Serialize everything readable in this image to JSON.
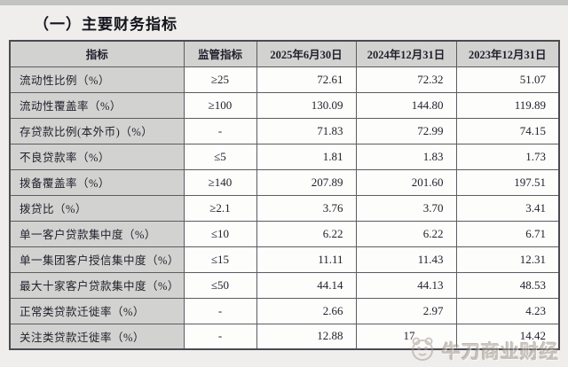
{
  "page": {
    "title": "（一）主要财务指标"
  },
  "table": {
    "columns": [
      "指标",
      "监管指标",
      "2025年6月30日",
      "2024年12月31日",
      "2023年12月31日"
    ],
    "rows": [
      [
        "流动性比例（%）",
        "≥25",
        "72.61",
        "72.32",
        "51.07"
      ],
      [
        "流动性覆盖率（%）",
        "≥100",
        "130.09",
        "144.80",
        "119.89"
      ],
      [
        "存贷款比例(本外币)（%）",
        "-",
        "71.83",
        "72.99",
        "74.15"
      ],
      [
        "不良贷款率（%）",
        "≤5",
        "1.81",
        "1.83",
        "1.73"
      ],
      [
        "拨备覆盖率（%）",
        "≥140",
        "207.89",
        "201.60",
        "197.51"
      ],
      [
        "拨贷比（%）",
        "≥2.1",
        "3.76",
        "3.70",
        "3.41"
      ],
      [
        "单一客户贷款集中度（%）",
        "≤10",
        "6.22",
        "6.22",
        "6.71"
      ],
      [
        "单一集团客户授信集中度（%）",
        "≤15",
        "11.11",
        "11.43",
        "12.31"
      ],
      [
        "最大十家客户贷款集中度（%）",
        "≤50",
        "44.14",
        "44.13",
        "48.53"
      ],
      [
        "正常类贷款迁徙率（%）",
        "-",
        "2.66",
        "2.97",
        "4.23"
      ],
      [
        "关注类贷款迁徙率（%）",
        "-",
        "12.88",
        "17",
        "14.42"
      ]
    ]
  },
  "watermark": {
    "text": "牛刀商业财经",
    "logo": "mascot-badge-icon"
  },
  "colors": {
    "header_bg": "#d2d2d1",
    "cell_bg": "#fdfdfc",
    "border": "#5c5c62",
    "text": "#21212c",
    "watermark": "#aa9f94",
    "page_bg": "#efeeec"
  }
}
